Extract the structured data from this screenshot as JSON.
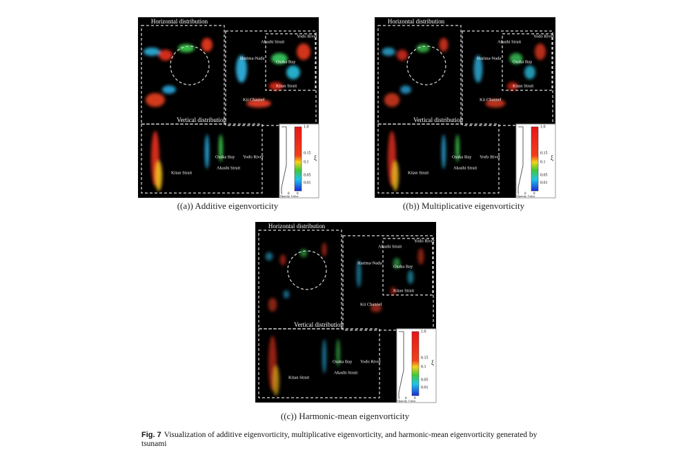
{
  "panels": [
    {
      "caption": "((a)) Additive eigenvorticity",
      "horizontal_title": "Horizontal distribution",
      "vertical_title": "Vertical distribution",
      "map_labels": {
        "akashi": "Akashi Strait",
        "yodo": "Yodo River",
        "harima": "Harima-Nada",
        "osaka": "Osaka Bay",
        "kitan": "Kitan Strait",
        "kii": "Kii Channel"
      },
      "vertical_labels": {
        "osaka": "Osaka Bay",
        "yodo": "Yodo River",
        "kitan": "Kitan Strait",
        "akashi": "Akashi Strait"
      },
      "colorbar": {
        "ticks": [
          "1.0",
          "0.15",
          "0.1",
          "0.05",
          "0.01"
        ],
        "symbol": "ξ",
        "opacity_ticks": [
          "1",
          "0"
        ],
        "color_tick": "0",
        "opacity_label": "Opacity",
        "color_label": "Color"
      }
    },
    {
      "caption": "((b)) Multiplicative eigenvorticity",
      "horizontal_title": "Horizontal distribution",
      "vertical_title": "Vertical distribution",
      "map_labels": {
        "akashi": "Akashi Strait",
        "yodo": "Yodo River",
        "harima": "Harima-Nada",
        "osaka": "Osaka Bay",
        "kitan": "Kitan Strait",
        "kii": "Kii Channel"
      },
      "vertical_labels": {
        "osaka": "Osaka Bay",
        "yodo": "Yodo River",
        "kitan": "Kitan Strait",
        "akashi": "Akashi Strait"
      },
      "colorbar": {
        "ticks": [
          "1.0",
          "0.15",
          "0.1",
          "0.05",
          "0.01"
        ],
        "symbol": "ξ",
        "opacity_ticks": [
          "1",
          "0"
        ],
        "color_tick": "0",
        "opacity_label": "Opacity",
        "color_label": "Color"
      }
    },
    {
      "caption": "((c)) Harmonic-mean eigenvorticity",
      "horizontal_title": "Horizontal distribution",
      "vertical_title": "Vertical distribution",
      "map_labels": {
        "akashi": "Akashi Strait",
        "yodo": "Yodo River",
        "harima": "Harima-Nada",
        "osaka": "Osaka Bay",
        "kitan": "Kitan Strait",
        "kii": "Kii Channel"
      },
      "vertical_labels": {
        "osaka": "Osaka Bay",
        "yodo": "Yodo River",
        "kitan": "Kitan Strait",
        "akashi": "Akashi Strait"
      },
      "colorbar": {
        "ticks": [
          "1.0",
          "0.15",
          "0.1",
          "0.05",
          "0.01"
        ],
        "symbol": "ξ",
        "opacity_ticks": [
          "1",
          "0"
        ],
        "color_tick": "0",
        "opacity_label": "Opacity",
        "color_label": "Color"
      }
    }
  ],
  "figure_caption": {
    "label": "Fig. 7",
    "text": "Visualization of additive eigenvorticity, multiplicative eigenvorticity, and harmonic-mean eigenvorticity generated by tsunami"
  }
}
